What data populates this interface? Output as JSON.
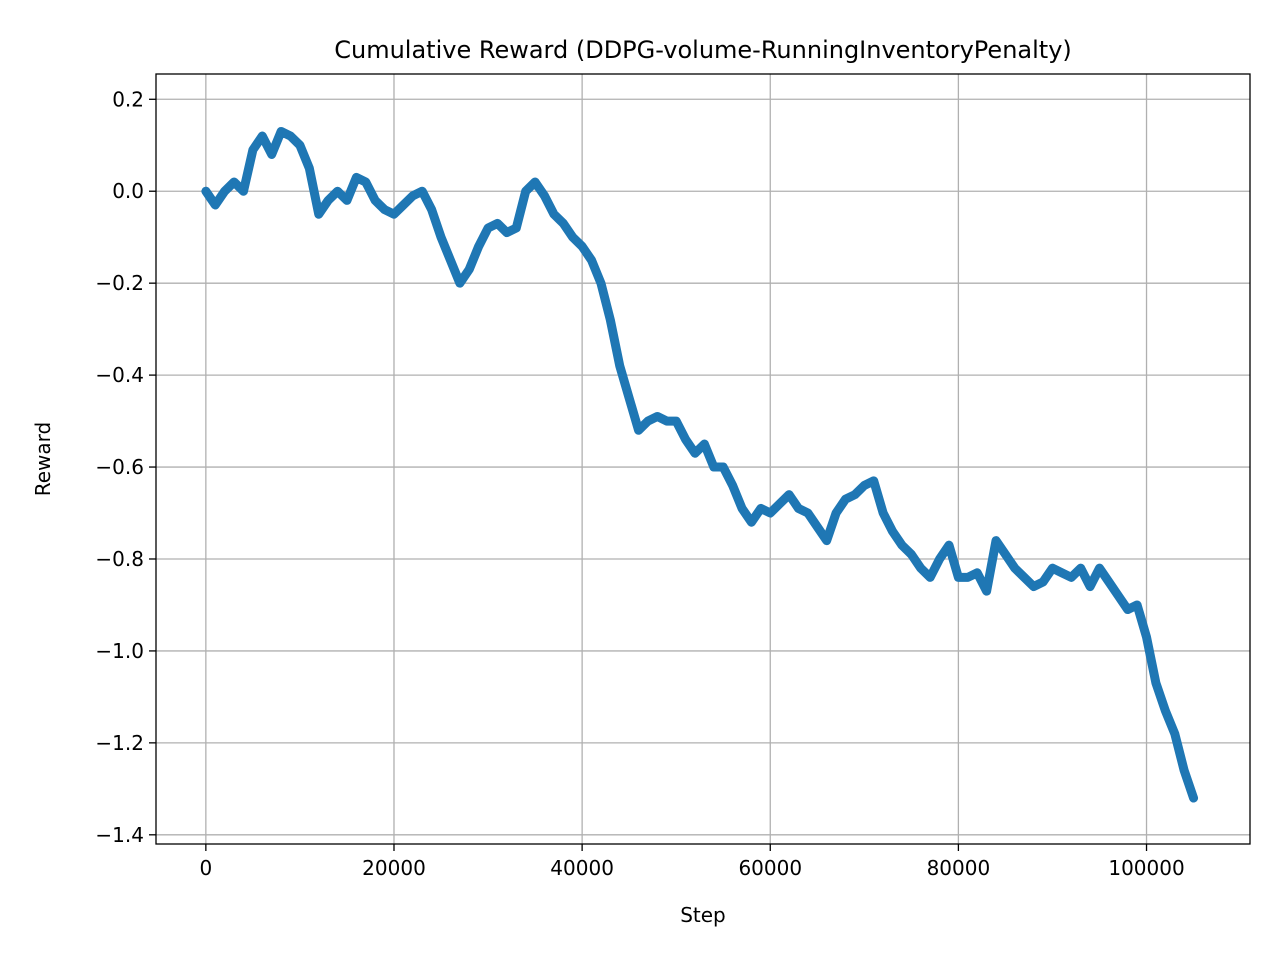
{
  "chart_data": {
    "type": "line",
    "title": "Cumulative Reward (DDPG-volume-RunningInventoryPenalty)",
    "xlabel": "Step",
    "ylabel": "Reward",
    "xlim": [
      -5300,
      111000
    ],
    "ylim": [
      -1.42,
      0.255
    ],
    "grid": true,
    "legend": "none",
    "x_ticks": [
      0,
      20000,
      40000,
      60000,
      80000,
      100000
    ],
    "x_tick_labels": [
      "0",
      "20000",
      "40000",
      "60000",
      "80000",
      "100000"
    ],
    "y_ticks": [
      0.2,
      0.0,
      -0.2,
      -0.4,
      -0.6,
      -0.8,
      -1.0,
      -1.2,
      -1.4
    ],
    "y_tick_labels": [
      "0.2",
      "0.0",
      "−0.2",
      "−0.4",
      "−0.6",
      "−0.8",
      "−1.0",
      "−1.2",
      "−1.4"
    ],
    "series": [
      {
        "color": "#1f77b4",
        "x": [
          0,
          1000,
          2000,
          3000,
          4000,
          5000,
          6000,
          7000,
          8000,
          9000,
          10000,
          11000,
          12000,
          13000,
          14000,
          15000,
          16000,
          17000,
          18000,
          19000,
          20000,
          21000,
          22000,
          23000,
          24000,
          25000,
          26000,
          27000,
          28000,
          29000,
          30000,
          31000,
          32000,
          33000,
          34000,
          35000,
          36000,
          37000,
          38000,
          39000,
          40000,
          41000,
          42000,
          43000,
          44000,
          45000,
          46000,
          47000,
          48000,
          49000,
          50000,
          51000,
          52000,
          53000,
          54000,
          55000,
          56000,
          57000,
          58000,
          59000,
          60000,
          61000,
          62000,
          63000,
          64000,
          65000,
          66000,
          67000,
          68000,
          69000,
          70000,
          71000,
          72000,
          73000,
          74000,
          75000,
          76000,
          77000,
          78000,
          79000,
          80000,
          81000,
          82000,
          83000,
          84000,
          85000,
          86000,
          87000,
          88000,
          89000,
          90000,
          91000,
          92000,
          93000,
          94000,
          95000,
          96000,
          97000,
          98000,
          99000,
          100000,
          101000,
          102000,
          103000,
          104000,
          105000
        ],
        "y": [
          0.0,
          -0.03,
          0.0,
          0.02,
          0.0,
          0.09,
          0.12,
          0.08,
          0.13,
          0.12,
          0.1,
          0.05,
          -0.05,
          -0.02,
          0.0,
          -0.02,
          0.03,
          0.02,
          -0.02,
          -0.04,
          -0.05,
          -0.03,
          -0.01,
          0.0,
          -0.04,
          -0.1,
          -0.15,
          -0.2,
          -0.17,
          -0.12,
          -0.08,
          -0.07,
          -0.09,
          -0.08,
          0.0,
          0.02,
          -0.01,
          -0.05,
          -0.07,
          -0.1,
          -0.12,
          -0.15,
          -0.2,
          -0.28,
          -0.38,
          -0.45,
          -0.52,
          -0.5,
          -0.49,
          -0.5,
          -0.5,
          -0.54,
          -0.57,
          -0.55,
          -0.6,
          -0.6,
          -0.64,
          -0.69,
          -0.72,
          -0.69,
          -0.7,
          -0.68,
          -0.66,
          -0.69,
          -0.7,
          -0.73,
          -0.76,
          -0.7,
          -0.67,
          -0.66,
          -0.64,
          -0.63,
          -0.7,
          -0.74,
          -0.77,
          -0.79,
          -0.82,
          -0.84,
          -0.8,
          -0.77,
          -0.84,
          -0.84,
          -0.83,
          -0.87,
          -0.76,
          -0.79,
          -0.82,
          -0.84,
          -0.86,
          -0.85,
          -0.82,
          -0.83,
          -0.84,
          -0.82,
          -0.86,
          -0.82,
          -0.85,
          -0.88,
          -0.91,
          -0.9,
          -0.97,
          -1.07,
          -1.13,
          -1.18,
          -1.26,
          -1.32
        ]
      }
    ]
  }
}
